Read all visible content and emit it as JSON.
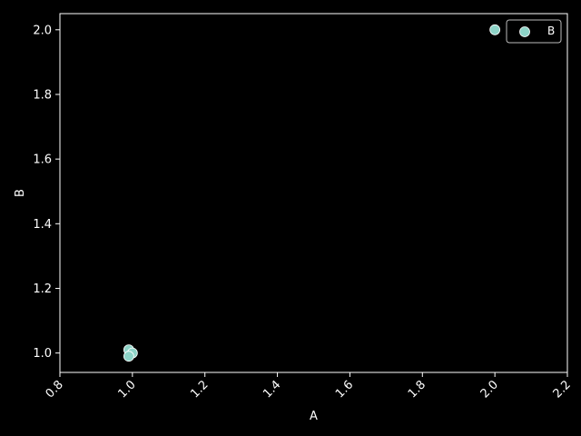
{
  "chart_data": {
    "type": "scatter",
    "title": "",
    "xlabel": "A",
    "ylabel": "B",
    "xlim": [
      0.8,
      2.2
    ],
    "ylim": [
      0.94,
      2.05
    ],
    "xticks": [
      0.8,
      1.0,
      1.2,
      1.4,
      1.6,
      1.8,
      2.0,
      2.2
    ],
    "xtick_labels": [
      "0.8",
      "1.0",
      "1.2",
      "1.4",
      "1.6",
      "1.8",
      "2.0",
      "2.2"
    ],
    "yticks": [
      1.0,
      1.2,
      1.4,
      1.6,
      1.8,
      2.0
    ],
    "ytick_labels": [
      "1.0",
      "1.2",
      "1.4",
      "1.6",
      "1.8",
      "2.0"
    ],
    "grid": false,
    "legend": {
      "placement": "top-right",
      "entries": [
        "B"
      ]
    },
    "background": "#000000",
    "foreground": "#ffffff",
    "series": [
      {
        "name": "B",
        "color": "#8dd3c7",
        "points": [
          {
            "x": 0.99,
            "y": 1.01
          },
          {
            "x": 1.0,
            "y": 1.0
          },
          {
            "x": 0.99,
            "y": 0.99
          },
          {
            "x": 2.0,
            "y": 2.0
          }
        ]
      }
    ]
  }
}
